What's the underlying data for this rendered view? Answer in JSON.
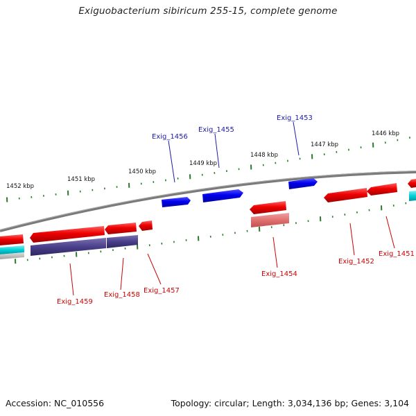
{
  "title": "Exiguobacterium sibiricum 255-15, complete genome",
  "footer": {
    "accession": "Accession: NC_010556",
    "summary": "Topology: circular; Length: 3,034,136 bp; Genes: 3,104"
  },
  "colors": {
    "forward_gene": "#0000ee",
    "reverse_gene": "#ee0000",
    "reverse_pale": "#e87070",
    "navy_gene": "#4a3f8a",
    "cyan_gene": "#00d0d8",
    "ticks": "#2a7a2a",
    "backbone": "#7a7a7a",
    "forward_label": "#1a1aaa",
    "reverse_label": "#cc0000"
  },
  "scale_labels": [
    "1452 kbp",
    "1451 kbp",
    "1450 kbp",
    "1449 kbp",
    "1448 kbp",
    "1447 kbp",
    "1446 kbp"
  ],
  "gene_labels": [
    {
      "name": "Exig_1456",
      "strand": "forward"
    },
    {
      "name": "Exig_1455",
      "strand": "forward"
    },
    {
      "name": "Exig_1453",
      "strand": "forward"
    },
    {
      "name": "Exig_1459",
      "strand": "reverse"
    },
    {
      "name": "Exig_1458",
      "strand": "reverse"
    },
    {
      "name": "Exig_1457",
      "strand": "reverse"
    },
    {
      "name": "Exig_1454",
      "strand": "reverse"
    },
    {
      "name": "Exig_1452",
      "strand": "reverse"
    },
    {
      "name": "Exig_1451",
      "strand": "reverse"
    }
  ]
}
